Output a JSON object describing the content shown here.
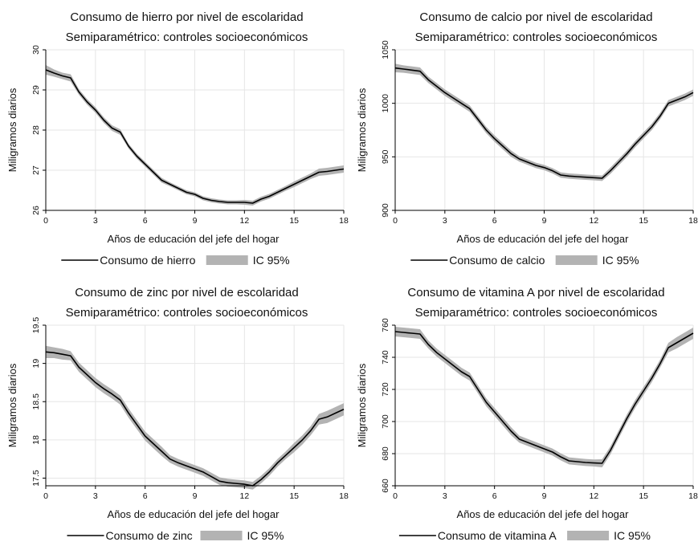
{
  "chart_data": [
    {
      "type": "line",
      "title": "Consumo de hierro por nivel de escolaridad",
      "subtitle": "Semiparamétrico: controles socioeconómicos",
      "xlabel": "Años de educación del jefe del hogar",
      "ylabel": "Miligramos diarios",
      "xlim": [
        0,
        18
      ],
      "ylim": [
        26,
        30
      ],
      "xticks": [
        0,
        3,
        6,
        9,
        12,
        15,
        18
      ],
      "yticks": [
        26,
        27,
        28,
        29,
        30
      ],
      "grid": true,
      "legend_position": "bottom",
      "x": [
        0,
        0.5,
        1,
        1.5,
        2,
        2.5,
        3,
        3.5,
        4,
        4.5,
        5,
        5.5,
        6,
        6.5,
        7,
        7.5,
        8,
        8.5,
        9,
        9.5,
        10,
        10.5,
        11,
        11.5,
        12,
        12.5,
        13,
        13.5,
        14,
        14.5,
        15,
        15.5,
        16,
        16.5,
        17,
        17.5,
        18
      ],
      "series": [
        {
          "name": "Consumo de hierro",
          "kind": "line",
          "color": "#000000",
          "values": [
            29.5,
            29.42,
            29.35,
            29.3,
            28.95,
            28.7,
            28.5,
            28.25,
            28.05,
            27.95,
            27.6,
            27.35,
            27.15,
            26.95,
            26.75,
            26.65,
            26.55,
            26.45,
            26.4,
            26.3,
            26.25,
            26.22,
            26.2,
            26.2,
            26.2,
            26.18,
            26.28,
            26.35,
            26.45,
            26.55,
            26.65,
            26.75,
            26.85,
            26.95,
            26.97,
            27.0,
            27.03
          ]
        },
        {
          "name": "IC 95%",
          "kind": "band",
          "color": "#b3b3b3",
          "lower": [
            29.38,
            29.33,
            29.27,
            29.21,
            28.88,
            28.63,
            28.43,
            28.18,
            27.98,
            27.88,
            27.54,
            27.29,
            27.09,
            26.89,
            26.69,
            26.6,
            26.5,
            26.4,
            26.35,
            26.25,
            26.2,
            26.17,
            26.15,
            26.15,
            26.14,
            26.12,
            26.22,
            26.29,
            26.39,
            26.49,
            26.58,
            26.68,
            26.78,
            26.86,
            26.88,
            26.91,
            26.94
          ],
          "upper": [
            29.62,
            29.51,
            29.43,
            29.39,
            29.02,
            28.77,
            28.57,
            28.32,
            28.12,
            28.02,
            27.66,
            27.41,
            27.21,
            27.01,
            26.81,
            26.7,
            26.6,
            26.5,
            26.45,
            26.35,
            26.3,
            26.27,
            26.25,
            26.25,
            26.26,
            26.24,
            26.34,
            26.41,
            26.51,
            26.61,
            26.72,
            26.82,
            26.92,
            27.04,
            27.06,
            27.09,
            27.12
          ]
        }
      ]
    },
    {
      "type": "line",
      "title": "Consumo de calcio por nivel de escolaridad",
      "subtitle": "Semiparamétrico: controles socioeconómicos",
      "xlabel": "Años de educación del jefe del hogar",
      "ylabel": "Miligramos diarios",
      "xlim": [
        0,
        18
      ],
      "ylim": [
        900,
        1050
      ],
      "xticks": [
        0,
        3,
        6,
        9,
        12,
        15,
        18
      ],
      "yticks": [
        900,
        950,
        1000,
        1050
      ],
      "grid": true,
      "legend_position": "bottom",
      "x": [
        0,
        0.5,
        1,
        1.5,
        2,
        2.5,
        3,
        3.5,
        4,
        4.5,
        5,
        5.5,
        6,
        6.5,
        7,
        7.5,
        8,
        8.5,
        9,
        9.5,
        10,
        10.5,
        11,
        11.5,
        12,
        12.5,
        13,
        13.5,
        14,
        14.5,
        15,
        15.5,
        16,
        16.5,
        17,
        17.5,
        18
      ],
      "series": [
        {
          "name": "Consumo de calcio",
          "kind": "line",
          "color": "#000000",
          "values": [
            1033,
            1032,
            1031,
            1030,
            1022,
            1016,
            1010,
            1005,
            1000,
            995,
            985,
            975,
            967,
            960,
            953,
            948,
            945,
            942,
            940,
            937,
            933,
            932,
            931.5,
            931,
            930.5,
            930,
            937,
            945,
            953,
            962,
            970,
            978,
            988,
            1000,
            1003,
            1006,
            1010
          ]
        },
        {
          "name": "IC 95%",
          "kind": "band",
          "color": "#b3b3b3",
          "lower": [
            1029,
            1028.5,
            1027.5,
            1026.5,
            1019,
            1013,
            1007,
            1002,
            997,
            992,
            982,
            972,
            964,
            957,
            950,
            945.5,
            942.5,
            939.5,
            937.5,
            934.5,
            930.5,
            929.5,
            929,
            928.5,
            928,
            927.5,
            934,
            942,
            950,
            959,
            967,
            975,
            985,
            997,
            1000,
            1003,
            1007
          ],
          "upper": [
            1037,
            1035.5,
            1034.5,
            1033.5,
            1025,
            1019,
            1013,
            1008,
            1003,
            998,
            988,
            978,
            970,
            963,
            956,
            950.5,
            947.5,
            944.5,
            942.5,
            939.5,
            935.5,
            934.5,
            934,
            933.5,
            933,
            932.5,
            940,
            948,
            956,
            965,
            973,
            981,
            991,
            1003,
            1006,
            1009,
            1013
          ]
        }
      ]
    },
    {
      "type": "line",
      "title": "Consumo de zinc por nivel de escolaridad",
      "subtitle": "Semiparamétrico: controles socioeconómicos",
      "xlabel": "Años de educación del jefe del hogar",
      "ylabel": "Miligramos diarios",
      "xlim": [
        0,
        18
      ],
      "ylim": [
        17.4,
        19.5
      ],
      "xticks": [
        0,
        3,
        6,
        9,
        12,
        15,
        18
      ],
      "yticks": [
        17.5,
        18,
        18.5,
        19,
        19.5
      ],
      "grid": true,
      "legend_position": "bottom",
      "x": [
        0,
        0.5,
        1,
        1.5,
        2,
        2.5,
        3,
        3.5,
        4,
        4.5,
        5,
        5.5,
        6,
        6.5,
        7,
        7.5,
        8,
        8.5,
        9,
        9.5,
        10,
        10.5,
        11,
        11.5,
        12,
        12.5,
        13,
        13.5,
        14,
        14.5,
        15,
        15.5,
        16,
        16.5,
        17,
        17.5,
        18
      ],
      "series": [
        {
          "name": "Consumo de zinc",
          "kind": "line",
          "color": "#000000",
          "values": [
            19.15,
            19.14,
            19.12,
            19.1,
            18.95,
            18.85,
            18.75,
            18.67,
            18.6,
            18.52,
            18.35,
            18.2,
            18.05,
            17.95,
            17.85,
            17.75,
            17.7,
            17.66,
            17.62,
            17.58,
            17.52,
            17.46,
            17.44,
            17.43,
            17.42,
            17.4,
            17.48,
            17.58,
            17.7,
            17.8,
            17.9,
            18.0,
            18.12,
            18.27,
            18.3,
            18.35,
            18.4
          ]
        },
        {
          "name": "IC 95%",
          "kind": "band",
          "color": "#b3b3b3",
          "lower": [
            19.07,
            19.07,
            19.05,
            19.04,
            18.89,
            18.79,
            18.69,
            18.61,
            18.54,
            18.46,
            18.29,
            18.14,
            17.99,
            17.89,
            17.79,
            17.7,
            17.65,
            17.61,
            17.57,
            17.53,
            17.47,
            17.41,
            17.39,
            17.38,
            17.37,
            17.35,
            17.43,
            17.53,
            17.65,
            17.75,
            17.84,
            17.94,
            18.06,
            18.2,
            18.22,
            18.27,
            18.32
          ],
          "upper": [
            19.23,
            19.21,
            19.19,
            19.16,
            19.01,
            18.91,
            18.81,
            18.73,
            18.66,
            18.58,
            18.41,
            18.26,
            18.11,
            18.01,
            17.91,
            17.8,
            17.75,
            17.71,
            17.67,
            17.63,
            17.57,
            17.51,
            17.49,
            17.48,
            17.47,
            17.45,
            17.53,
            17.63,
            17.75,
            17.85,
            17.96,
            18.06,
            18.18,
            18.34,
            18.38,
            18.43,
            18.48
          ]
        }
      ]
    },
    {
      "type": "line",
      "title": "Consumo de vitamina A por nivel de escolaridad",
      "subtitle": "Semiparamétrico: controles socioeconómicos",
      "xlabel": "Años de educación del jefe del hogar",
      "ylabel": "Miligramos diarios",
      "xlim": [
        0,
        18
      ],
      "ylim": [
        660,
        760
      ],
      "xticks": [
        0,
        3,
        6,
        9,
        12,
        15,
        18
      ],
      "yticks": [
        660,
        680,
        700,
        720,
        740,
        760
      ],
      "grid": true,
      "legend_position": "bottom",
      "x": [
        0,
        0.5,
        1,
        1.5,
        2,
        2.5,
        3,
        3.5,
        4,
        4.5,
        5,
        5.5,
        6,
        6.5,
        7,
        7.5,
        8,
        8.5,
        9,
        9.5,
        10,
        10.5,
        11,
        11.5,
        12,
        12.5,
        13,
        13.5,
        14,
        14.5,
        15,
        15.5,
        16,
        16.5,
        17,
        17.5,
        18
      ],
      "series": [
        {
          "name": "Consumo de vitamina A",
          "kind": "line",
          "color": "#000000",
          "values": [
            756,
            755.5,
            755,
            754.5,
            748,
            743,
            739,
            735,
            731,
            728,
            720,
            712,
            706,
            700,
            694,
            689,
            687,
            685,
            683,
            681,
            678,
            675.5,
            675,
            674.5,
            674.2,
            674,
            682,
            692,
            702,
            711,
            719,
            727,
            736,
            746,
            749,
            752,
            755
          ]
        },
        {
          "name": "IC 95%",
          "kind": "band",
          "color": "#b3b3b3",
          "lower": [
            753,
            752.5,
            752,
            751.5,
            745.5,
            740.5,
            736.5,
            732.5,
            728.5,
            725.5,
            717.5,
            709.5,
            703.5,
            697.5,
            691.5,
            686.8,
            684.8,
            682.8,
            680.8,
            678.8,
            675.8,
            673.3,
            672.8,
            672.3,
            672,
            671.5,
            679.5,
            689.5,
            699.5,
            708.5,
            716.5,
            724.5,
            733.5,
            743,
            745.5,
            748.5,
            751.5
          ],
          "upper": [
            759,
            758.5,
            758,
            757.5,
            750.5,
            745.5,
            741.5,
            737.5,
            733.5,
            730.5,
            722.5,
            714.5,
            708.5,
            702.5,
            696.5,
            691.2,
            689.2,
            687.2,
            685.2,
            683.2,
            680.2,
            677.7,
            677.2,
            676.7,
            676.4,
            676.5,
            684.5,
            694.5,
            704.5,
            713.5,
            721.5,
            729.5,
            738.5,
            749,
            752.5,
            755.5,
            758.5
          ]
        }
      ]
    }
  ]
}
